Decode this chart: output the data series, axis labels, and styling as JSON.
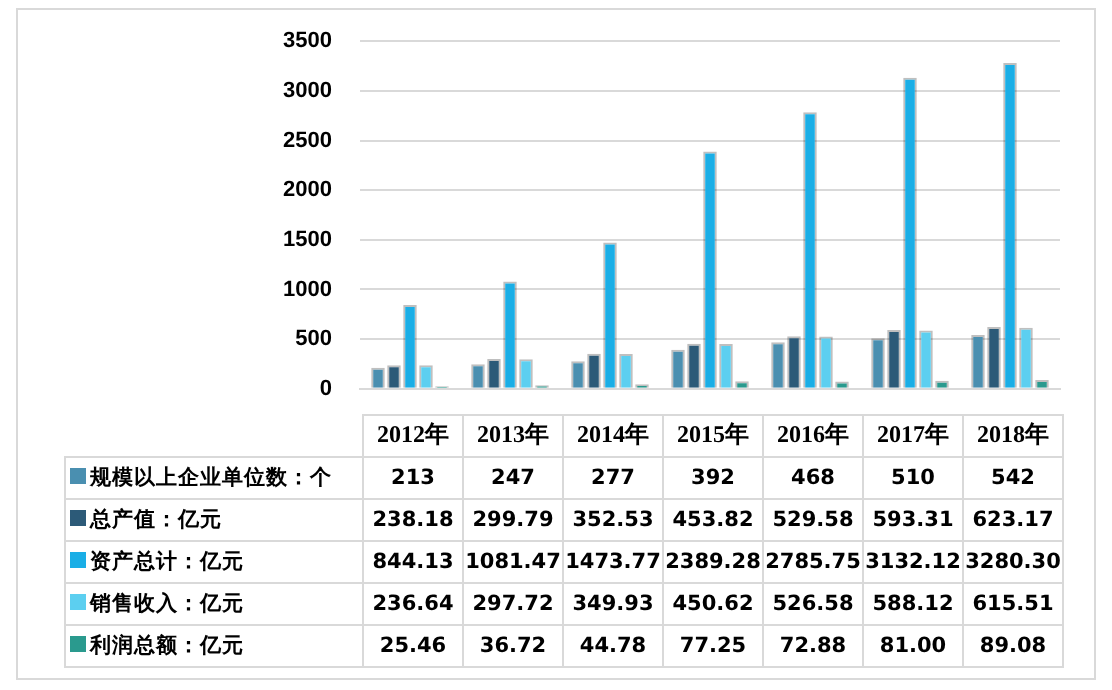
{
  "chart_data": {
    "type": "bar",
    "categories": [
      "2012年",
      "2013年",
      "2014年",
      "2015年",
      "2016年",
      "2017年",
      "2018年"
    ],
    "series": [
      {
        "name": "规模以上企业单位数：个",
        "color": "#4a8fb0",
        "values": [
          213,
          247,
          277,
          392,
          468,
          510,
          542
        ],
        "value_labels": [
          "213",
          "247",
          "277",
          "392",
          "468",
          "510",
          "542"
        ]
      },
      {
        "name": "总产值：亿元",
        "color": "#2c5a78",
        "values": [
          238.18,
          299.79,
          352.53,
          453.82,
          529.58,
          593.31,
          623.17
        ],
        "value_labels": [
          "238.18",
          "299.79",
          "352.53",
          "453.82",
          "529.58",
          "593.31",
          "623.17"
        ]
      },
      {
        "name": "资产总计：亿元",
        "color": "#1aaee6",
        "values": [
          844.13,
          1081.47,
          1473.77,
          2389.28,
          2785.75,
          3132.12,
          3280.3
        ],
        "value_labels": [
          "844.13",
          "1081.47",
          "1473.77",
          "2389.28",
          "2785.75",
          "3132.12",
          "3280.30"
        ]
      },
      {
        "name": "销售收入：亿元",
        "color": "#5ccff0",
        "values": [
          236.64,
          297.72,
          349.93,
          450.62,
          526.58,
          588.12,
          615.51
        ],
        "value_labels": [
          "236.64",
          "297.72",
          "349.93",
          "450.62",
          "526.58",
          "588.12",
          "615.51"
        ]
      },
      {
        "name": "利润总额：亿元",
        "color": "#2a9a8e",
        "values": [
          25.46,
          36.72,
          44.78,
          77.25,
          72.88,
          81.0,
          89.08
        ],
        "value_labels": [
          "25.46",
          "36.72",
          "44.78",
          "77.25",
          "72.88",
          "81.00",
          "89.08"
        ]
      }
    ],
    "ylim": [
      0,
      3500
    ],
    "yticks": [
      0,
      500,
      1000,
      1500,
      2000,
      2500,
      3000,
      3500
    ],
    "grid": "y",
    "legend": "bottom"
  }
}
